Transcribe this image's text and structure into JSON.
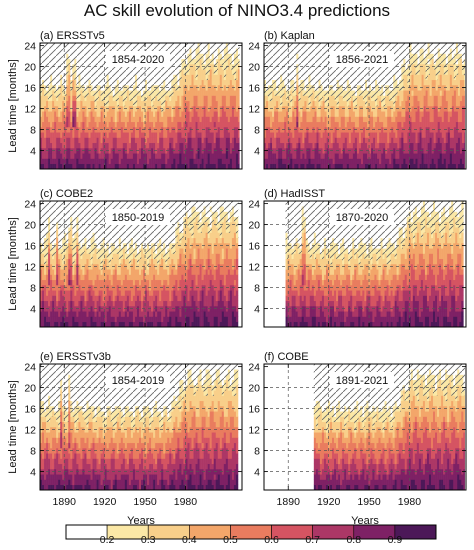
{
  "figure": {
    "title": "AC skill evolution of NINO3.4 predictions"
  },
  "chart_data": {
    "type": "heatmap",
    "title": "AC skill evolution of NINO3.4 predictions",
    "xlabel": "Years",
    "ylabel": "Lead time [months]",
    "xlim": [
      1872,
      2022
    ],
    "ylim": [
      1,
      24
    ],
    "xticks": [
      1890,
      1920,
      1950,
      1980
    ],
    "yticks": [
      4,
      8,
      12,
      16,
      20,
      24
    ],
    "grid": true,
    "colorbar": {
      "position": "bottom",
      "levels": [
        0.2,
        0.3,
        0.4,
        0.5,
        0.6,
        0.7,
        0.8,
        0.9
      ],
      "colors": [
        "#ffffff",
        "#fbe8a6",
        "#f8cf8a",
        "#f3a66a",
        "#e97c5f",
        "#d55462",
        "#ac3766",
        "#7e2165",
        "#4c1858"
      ]
    },
    "panels": [
      {
        "label": "(a) ERSSTv5",
        "period": "1854-2020",
        "start": 1872,
        "end": 2020,
        "bands": [
          1892,
          1897
        ]
      },
      {
        "label": "(b) Kaplan",
        "period": "1856-2021",
        "start": 1872,
        "end": 2021,
        "bands": [
          1896
        ]
      },
      {
        "label": "(c) COBE2",
        "period": "1850-2019",
        "start": 1872,
        "end": 2019,
        "bands": [
          1878,
          1884,
          1894,
          1899
        ]
      },
      {
        "label": "(d) HadISST",
        "period": "1870-2020",
        "start": 1888,
        "end": 2020,
        "bands": [
          1901
        ]
      },
      {
        "label": "(e) ERSSTv3b",
        "period": "1854-2019",
        "start": 1872,
        "end": 2019,
        "bands": [
          1887,
          1893
        ]
      },
      {
        "label": "(f) COBE",
        "period": "1891-2021",
        "start": 1909,
        "end": 2021,
        "bands": []
      }
    ]
  }
}
